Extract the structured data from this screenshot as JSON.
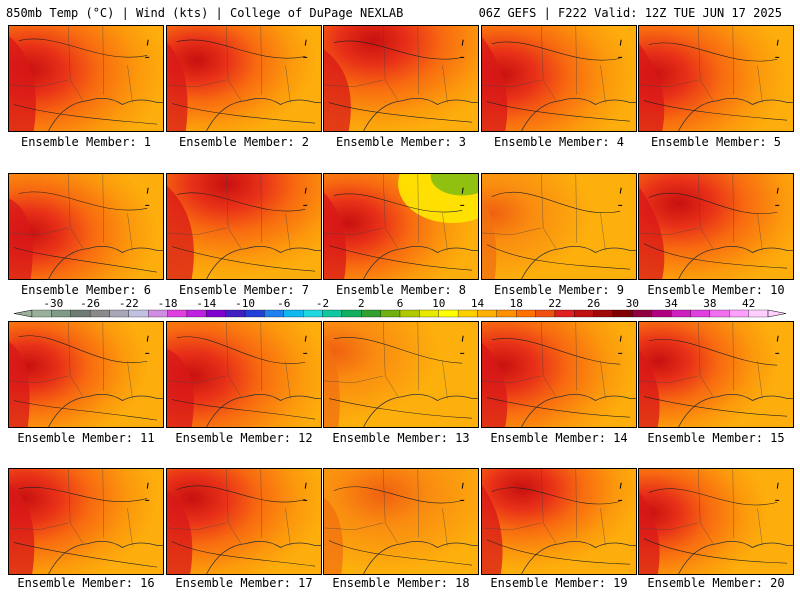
{
  "header": {
    "left_title": "850mb Temp (°C) | Wind (kts) | College of DuPage NEXLAB",
    "right_title": "06Z GEFS | F222 Valid: 12Z TUE JUN 17 2025"
  },
  "legend": {
    "ticks": [
      "-30",
      "-26",
      "-22",
      "-18",
      "-14",
      "-10",
      "-6",
      "-2",
      "2",
      "6",
      "10",
      "14",
      "18",
      "22",
      "26",
      "30",
      "34",
      "38",
      "42"
    ],
    "colors": [
      "#9bb09a",
      "#7f9a86",
      "#6e7c74",
      "#8a8a8a",
      "#a7a7b8",
      "#c0c0e0",
      "#d08ce0",
      "#e040e0",
      "#c020e0",
      "#8000d0",
      "#4020c0",
      "#2040d8",
      "#2080f0",
      "#10b8f0",
      "#20d8e0",
      "#10c8a0",
      "#10b060",
      "#30a030",
      "#70b010",
      "#b0c800",
      "#e8e800",
      "#ffff00",
      "#ffd000",
      "#ffb000",
      "#ff9000",
      "#ff7000",
      "#f05010",
      "#e02020",
      "#c01010",
      "#a00808",
      "#800000",
      "#900040",
      "#b00080",
      "#d020c0",
      "#e040e0",
      "#f070f0",
      "#ffa0ff",
      "#ffd0ff"
    ]
  },
  "panels": [
    {
      "label": "Ensemble Member: 1"
    },
    {
      "label": "Ensemble Member: 2"
    },
    {
      "label": "Ensemble Member: 3"
    },
    {
      "label": "Ensemble Member: 4"
    },
    {
      "label": "Ensemble Member: 5"
    },
    {
      "label": "Ensemble Member: 6"
    },
    {
      "label": "Ensemble Member: 7"
    },
    {
      "label": "Ensemble Member: 8"
    },
    {
      "label": "Ensemble Member: 9"
    },
    {
      "label": "Ensemble Member: 10"
    },
    {
      "label": "Ensemble Member: 11"
    },
    {
      "label": "Ensemble Member: 12"
    },
    {
      "label": "Ensemble Member: 13"
    },
    {
      "label": "Ensemble Member: 14"
    },
    {
      "label": "Ensemble Member: 15"
    },
    {
      "label": "Ensemble Member: 16"
    },
    {
      "label": "Ensemble Member: 17"
    },
    {
      "label": "Ensemble Member: 18"
    },
    {
      "label": "Ensemble Member: 19"
    },
    {
      "label": "Ensemble Member: 20"
    }
  ]
}
